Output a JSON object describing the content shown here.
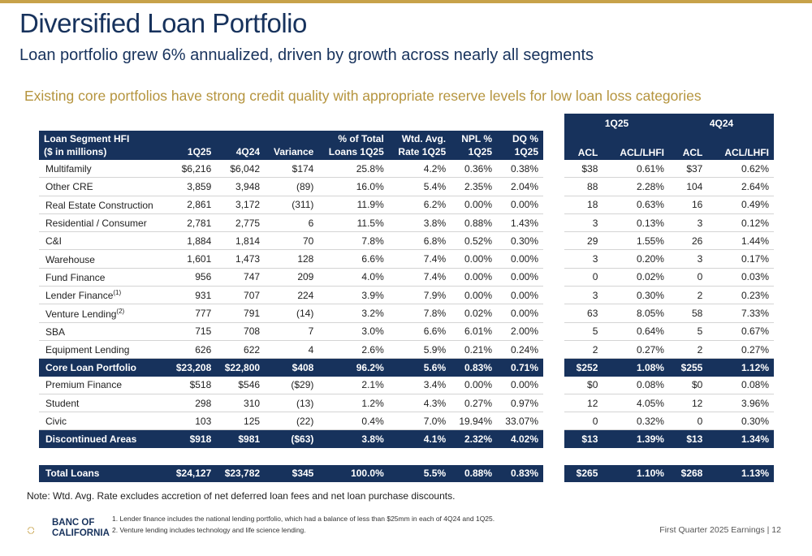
{
  "title": "Diversified Loan Portfolio",
  "subtitle": "Loan portfolio grew 6% annualized, driven by growth across nearly all segments",
  "highlight": "Existing core portfolios have strong credit quality with appropriate reserve levels for low loan loss categories",
  "left_table": {
    "headers": {
      "segment_line1": "Loan Segment HFI",
      "segment_line2": "($ in millions)",
      "q1": "1Q25",
      "q4": "4Q24",
      "variance": "Variance",
      "pct_line1": "% of Total",
      "pct_line2": "Loans 1Q25",
      "rate_line1": "Wtd. Avg.",
      "rate_line2": "Rate 1Q25",
      "npl_line1": "NPL %",
      "npl_line2": "1Q25",
      "dq_line1": "DQ %",
      "dq_line2": "1Q25"
    },
    "rows": [
      {
        "label": "Multifamily",
        "sup": "",
        "q1": "$6,216",
        "q4": "$6,042",
        "var": "$174",
        "pct": "25.8%",
        "rate": "4.2%",
        "npl": "0.36%",
        "dq": "0.38%"
      },
      {
        "label": "Other CRE",
        "sup": "",
        "q1": "3,859",
        "q4": "3,948",
        "var": "(89)",
        "pct": "16.0%",
        "rate": "5.4%",
        "npl": "2.35%",
        "dq": "2.04%"
      },
      {
        "label": "Real Estate Construction",
        "sup": "",
        "q1": "2,861",
        "q4": "3,172",
        "var": "(311)",
        "pct": "11.9%",
        "rate": "6.2%",
        "npl": "0.00%",
        "dq": "0.00%"
      },
      {
        "label": "Residential / Consumer",
        "sup": "",
        "q1": "2,781",
        "q4": "2,775",
        "var": "6",
        "pct": "11.5%",
        "rate": "3.8%",
        "npl": "0.88%",
        "dq": "1.43%"
      },
      {
        "label": "C&I",
        "sup": "",
        "q1": "1,884",
        "q4": "1,814",
        "var": "70",
        "pct": "7.8%",
        "rate": "6.8%",
        "npl": "0.52%",
        "dq": "0.30%"
      },
      {
        "label": "Warehouse",
        "sup": "",
        "q1": "1,601",
        "q4": "1,473",
        "var": "128",
        "pct": "6.6%",
        "rate": "7.4%",
        "npl": "0.00%",
        "dq": "0.00%"
      },
      {
        "label": "Fund Finance",
        "sup": "",
        "q1": "956",
        "q4": "747",
        "var": "209",
        "pct": "4.0%",
        "rate": "7.4%",
        "npl": "0.00%",
        "dq": "0.00%"
      },
      {
        "label": "Lender Finance",
        "sup": "(1)",
        "q1": "931",
        "q4": "707",
        "var": "224",
        "pct": "3.9%",
        "rate": "7.9%",
        "npl": "0.00%",
        "dq": "0.00%"
      },
      {
        "label": "Venture Lending",
        "sup": "(2)",
        "q1": "777",
        "q4": "791",
        "var": "(14)",
        "pct": "3.2%",
        "rate": "7.8%",
        "npl": "0.02%",
        "dq": "0.00%"
      },
      {
        "label": "SBA",
        "sup": "",
        "q1": "715",
        "q4": "708",
        "var": "7",
        "pct": "3.0%",
        "rate": "6.6%",
        "npl": "6.01%",
        "dq": "2.00%"
      },
      {
        "label": "Equipment Lending",
        "sup": "",
        "q1": "626",
        "q4": "622",
        "var": "4",
        "pct": "2.6%",
        "rate": "5.9%",
        "npl": "0.21%",
        "dq": "0.24%"
      }
    ],
    "core": {
      "label": "Core Loan Portfolio",
      "q1": "$23,208",
      "q4": "$22,800",
      "var": "$408",
      "pct": "96.2%",
      "rate": "5.6%",
      "npl": "0.83%",
      "dq": "0.71%"
    },
    "disc_rows": [
      {
        "label": "Premium Finance",
        "q1": "$518",
        "q4": "$546",
        "var": "($29)",
        "pct": "2.1%",
        "rate": "3.4%",
        "npl": "0.00%",
        "dq": "0.00%"
      },
      {
        "label": "Student",
        "q1": "298",
        "q4": "310",
        "var": "(13)",
        "pct": "1.2%",
        "rate": "4.3%",
        "npl": "0.27%",
        "dq": "0.97%"
      },
      {
        "label": "Civic",
        "q1": "103",
        "q4": "125",
        "var": "(22)",
        "pct": "0.4%",
        "rate": "7.0%",
        "npl": "19.94%",
        "dq": "33.07%"
      }
    ],
    "disc_total": {
      "label": "Discontinued Areas",
      "q1": "$918",
      "q4": "$981",
      "var": "($63)",
      "pct": "3.8%",
      "rate": "4.1%",
      "npl": "2.32%",
      "dq": "4.02%"
    },
    "total": {
      "label": "Total Loans",
      "q1": "$24,127",
      "q4": "$23,782",
      "var": "$345",
      "pct": "100.0%",
      "rate": "5.5%",
      "npl": "0.88%",
      "dq": "0.83%"
    }
  },
  "right_table": {
    "group1": "1Q25",
    "group2": "4Q24",
    "col_acl": "ACL",
    "col_acl_lhfi": "ACL/LHFI",
    "rows": [
      {
        "a1": "$38",
        "b1": "0.61%",
        "a2": "$37",
        "b2": "0.62%"
      },
      {
        "a1": "88",
        "b1": "2.28%",
        "a2": "104",
        "b2": "2.64%"
      },
      {
        "a1": "18",
        "b1": "0.63%",
        "a2": "16",
        "b2": "0.49%"
      },
      {
        "a1": "3",
        "b1": "0.13%",
        "a2": "3",
        "b2": "0.12%"
      },
      {
        "a1": "29",
        "b1": "1.55%",
        "a2": "26",
        "b2": "1.44%"
      },
      {
        "a1": "3",
        "b1": "0.20%",
        "a2": "3",
        "b2": "0.17%"
      },
      {
        "a1": "0",
        "b1": "0.02%",
        "a2": "0",
        "b2": "0.03%"
      },
      {
        "a1": "3",
        "b1": "0.30%",
        "a2": "2",
        "b2": "0.23%"
      },
      {
        "a1": "63",
        "b1": "8.05%",
        "a2": "58",
        "b2": "7.33%"
      },
      {
        "a1": "5",
        "b1": "0.64%",
        "a2": "5",
        "b2": "0.67%"
      },
      {
        "a1": "2",
        "b1": "0.27%",
        "a2": "2",
        "b2": "0.27%"
      }
    ],
    "core": {
      "a1": "$252",
      "b1": "1.08%",
      "a2": "$255",
      "b2": "1.12%"
    },
    "disc_rows": [
      {
        "a1": "$0",
        "b1": "0.08%",
        "a2": "$0",
        "b2": "0.08%"
      },
      {
        "a1": "12",
        "b1": "4.05%",
        "a2": "12",
        "b2": "3.96%"
      },
      {
        "a1": "0",
        "b1": "0.32%",
        "a2": "0",
        "b2": "0.30%"
      }
    ],
    "disc_total": {
      "a1": "$13",
      "b1": "1.39%",
      "a2": "$13",
      "b2": "1.34%"
    },
    "total": {
      "a1": "$265",
      "b1": "1.10%",
      "a2": "$268",
      "b2": "1.13%"
    }
  },
  "note": "Note: Wtd. Avg. Rate excludes accretion of net deferred loan fees and net loan purchase discounts.",
  "footnotes": [
    "1.  Lender finance includes the national lending portfolio, which had a balance of less than $25mm in each of 4Q24 and 1Q25.",
    "2.  Venture lending includes technology and life science lending."
  ],
  "logo": {
    "line1": "BANC OF",
    "line2": "CALIFORNIA"
  },
  "footer": "First Quarter 2025 Earnings  |  12",
  "colors": {
    "navy": "#17325c",
    "gold": "#c7a24a",
    "highlight_text": "#b5943e"
  }
}
